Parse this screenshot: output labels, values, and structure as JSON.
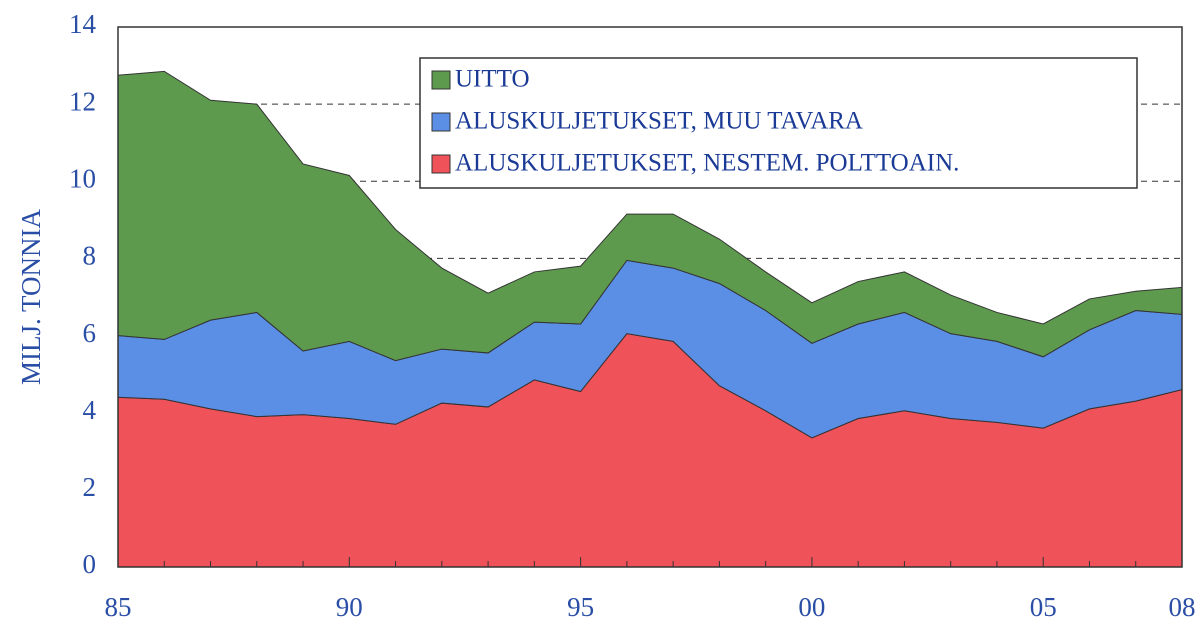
{
  "chart_data": {
    "type": "stacked_area",
    "y_label": "MILJ. TONNIA",
    "categories": [
      "85",
      null,
      null,
      null,
      null,
      "90",
      null,
      null,
      null,
      null,
      "95",
      null,
      null,
      null,
      null,
      "00",
      null,
      null,
      null,
      null,
      "05",
      null,
      null,
      "08"
    ],
    "series": [
      {
        "name": "UITTO",
        "color": "#5e9a4e",
        "values": [
          6.75,
          6.95,
          5.7,
          5.4,
          4.85,
          4.3,
          3.4,
          2.1,
          1.55,
          1.3,
          1.5,
          1.2,
          1.4,
          1.15,
          1.0,
          1.05,
          1.1,
          1.05,
          1.0,
          0.75,
          0.85,
          0.8,
          0.5,
          0.7
        ]
      },
      {
        "name": "ALUSKULJETUKSET, MUU TAVARA",
        "color": "#5b8fe6",
        "values": [
          1.6,
          1.55,
          2.3,
          2.7,
          1.65,
          2.0,
          1.65,
          1.4,
          1.4,
          1.5,
          1.75,
          1.9,
          1.9,
          2.65,
          2.6,
          2.45,
          2.45,
          2.55,
          2.2,
          2.1,
          1.85,
          2.05,
          2.35,
          1.95
        ]
      },
      {
        "name": "ALUSKULJETUKSET, NESTEM. POLTTOAIN.",
        "color": "#f0525a",
        "values": [
          4.4,
          4.35,
          4.1,
          3.9,
          3.95,
          3.85,
          3.7,
          4.25,
          4.15,
          4.85,
          4.55,
          6.05,
          5.85,
          4.7,
          4.05,
          3.35,
          3.85,
          4.05,
          3.85,
          3.75,
          3.6,
          4.1,
          4.3,
          4.6
        ]
      }
    ],
    "ylim": [
      0,
      14
    ],
    "yticks": [
      0,
      2,
      4,
      6,
      8,
      10,
      12,
      14
    ],
    "grid": true
  }
}
